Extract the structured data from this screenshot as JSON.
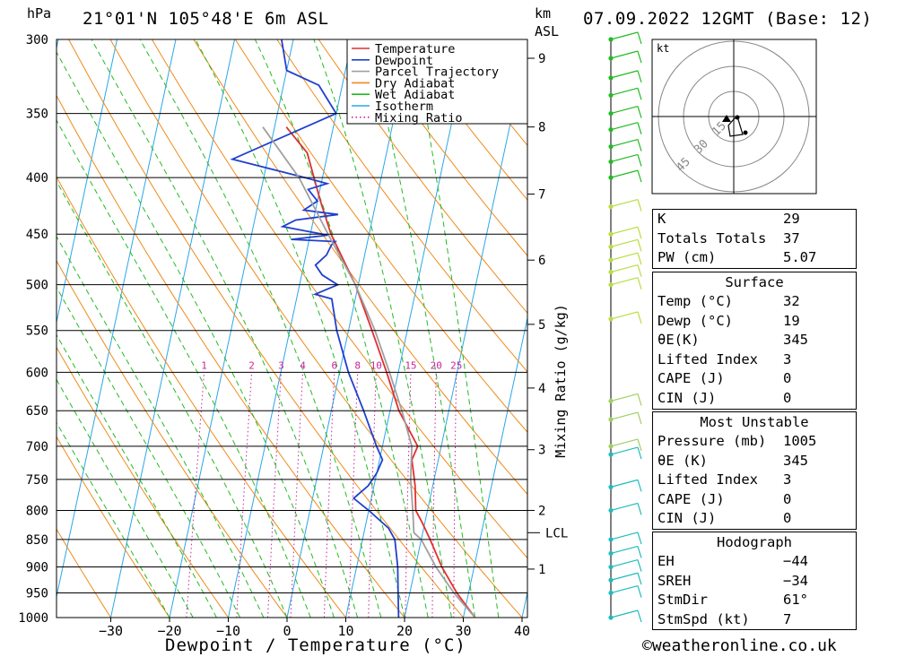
{
  "header": {
    "location": "21°01'N 105°48'E 6m ASL",
    "datetime": "07.09.2022 12GMT (Base: 12)",
    "pressure_unit": "hPa",
    "height_unit_km": "km",
    "height_unit_asl": "ASL",
    "footer": "©weatheronline.co.uk"
  },
  "chart_data": {
    "type": "line",
    "title": "",
    "xlabel": "Dewpoint / Temperature (°C)",
    "ylabel": "hPa",
    "xlim": [
      -40,
      40
    ],
    "ylim": [
      1000,
      300
    ],
    "y_scale": "log",
    "grid": true,
    "legend_position": "top-right",
    "x_ticks": [
      -30,
      -20,
      -10,
      0,
      10,
      20,
      30,
      40
    ],
    "x_tick_labels": [
      "−30",
      "−20",
      "−10",
      "0",
      "10",
      "20",
      "30",
      "40"
    ],
    "pressure_ticks": [
      300,
      350,
      400,
      450,
      500,
      550,
      600,
      650,
      700,
      750,
      800,
      850,
      900,
      950,
      1000
    ],
    "height_axis": {
      "label": "km ASL",
      "ticks": [
        {
          "label": "1",
          "p": 904
        },
        {
          "label": "2",
          "p": 800
        },
        {
          "label": "3",
          "p": 705
        },
        {
          "label": "4",
          "p": 620
        },
        {
          "label": "5",
          "p": 543
        },
        {
          "label": "6",
          "p": 475
        },
        {
          "label": "7",
          "p": 414
        },
        {
          "label": "8",
          "p": 360
        },
        {
          "label": "9",
          "p": 312
        }
      ],
      "lcl": {
        "label": "LCL",
        "p": 838
      }
    },
    "mixing_ratio": {
      "label": "Mixing Ratio (g/kg)",
      "values": [
        1,
        2,
        3,
        4,
        6,
        8,
        10,
        15,
        20,
        25
      ],
      "labels": [
        "1",
        "2",
        "3",
        "4",
        "6",
        "8",
        "10",
        "15",
        "20",
        "25"
      ]
    },
    "legend": [
      "Temperature",
      "Dewpoint",
      "Parcel Trajectory",
      "Dry Adiabat",
      "Wet Adiabat",
      "Isotherm",
      "Mixing Ratio"
    ],
    "series": [
      {
        "name": "Temperature",
        "color": "#e03030",
        "points": [
          [
            32,
            1000
          ],
          [
            28,
            950
          ],
          [
            24.5,
            900
          ],
          [
            21.5,
            850
          ],
          [
            19.5,
            820
          ],
          [
            18,
            800
          ],
          [
            17,
            760
          ],
          [
            15.5,
            720
          ],
          [
            16,
            700
          ],
          [
            11.5,
            650
          ],
          [
            8,
            600
          ],
          [
            4,
            550
          ],
          [
            -0.5,
            500
          ],
          [
            -6.5,
            450
          ],
          [
            -9.5,
            420
          ],
          [
            -13.5,
            380
          ],
          [
            -18,
            360
          ]
        ]
      },
      {
        "name": "Dewpoint",
        "color": "#2040d0",
        "points": [
          [
            19,
            1000
          ],
          [
            18,
            950
          ],
          [
            17,
            900
          ],
          [
            15.5,
            850
          ],
          [
            14,
            830
          ],
          [
            10,
            800
          ],
          [
            7,
            780
          ],
          [
            9,
            760
          ],
          [
            10,
            740
          ],
          [
            10.5,
            720
          ],
          [
            9,
            700
          ],
          [
            5.5,
            650
          ],
          [
            1.5,
            600
          ],
          [
            -2,
            550
          ],
          [
            -4,
            515
          ],
          [
            -7,
            510
          ],
          [
            -3.5,
            500
          ],
          [
            -6.5,
            490
          ],
          [
            -8,
            480
          ],
          [
            -6.5,
            470
          ],
          [
            -6,
            460
          ],
          [
            -5.5,
            457
          ],
          [
            -13,
            455
          ],
          [
            -7,
            451
          ],
          [
            -15,
            443
          ],
          [
            -13,
            437
          ],
          [
            -6,
            432
          ],
          [
            -12,
            428
          ],
          [
            -10,
            420
          ],
          [
            -12,
            410
          ],
          [
            -9,
            405
          ],
          [
            -13,
            400
          ],
          [
            -26,
            385
          ],
          [
            -10,
            350
          ],
          [
            -14,
            330
          ],
          [
            -20,
            320
          ],
          [
            -22,
            300
          ]
        ]
      },
      {
        "name": "Parcel Trajectory",
        "color": "#a0a0a0",
        "points": [
          [
            32,
            1000
          ],
          [
            27.5,
            950
          ],
          [
            23.5,
            900
          ],
          [
            20,
            850
          ],
          [
            18.5,
            838
          ],
          [
            17.5,
            800
          ],
          [
            16,
            750
          ],
          [
            15,
            700
          ],
          [
            12,
            650
          ],
          [
            8.5,
            600
          ],
          [
            4.5,
            550
          ],
          [
            -0.5,
            500
          ],
          [
            -7,
            450
          ],
          [
            -14,
            400
          ],
          [
            -22,
            360
          ]
        ]
      }
    ]
  },
  "hodograph": {
    "unit": "kt",
    "ring_labels": [
      "15",
      "30",
      "45"
    ]
  },
  "indices": {
    "top": [
      {
        "label": "K",
        "value": "29"
      },
      {
        "label": "Totals Totals",
        "value": "37"
      },
      {
        "label": "PW (cm)",
        "value": "5.07"
      }
    ],
    "surface": {
      "title": "Surface",
      "rows": [
        {
          "label": "Temp (°C)",
          "value": "32"
        },
        {
          "label": "Dewp (°C)",
          "value": "19"
        },
        {
          "label": "θE(K)",
          "value": "345"
        },
        {
          "label": "Lifted Index",
          "value": "3"
        },
        {
          "label": "CAPE (J)",
          "value": "0"
        },
        {
          "label": "CIN (J)",
          "value": "0"
        }
      ]
    },
    "most_unstable": {
      "title": "Most Unstable",
      "rows": [
        {
          "label": "Pressure (mb)",
          "value": "1005"
        },
        {
          "label": "θE (K)",
          "value": "345"
        },
        {
          "label": "Lifted Index",
          "value": "3"
        },
        {
          "label": "CAPE (J)",
          "value": "0"
        },
        {
          "label": "CIN (J)",
          "value": "0"
        }
      ]
    },
    "hodograph_table": {
      "title": "Hodograph",
      "rows": [
        {
          "label": "EH",
          "value": "−44"
        },
        {
          "label": "SREH",
          "value": "−34"
        },
        {
          "label": "StmDir",
          "value": "61°"
        },
        {
          "label": "StmSpd (kt)",
          "value": "7"
        }
      ]
    }
  }
}
